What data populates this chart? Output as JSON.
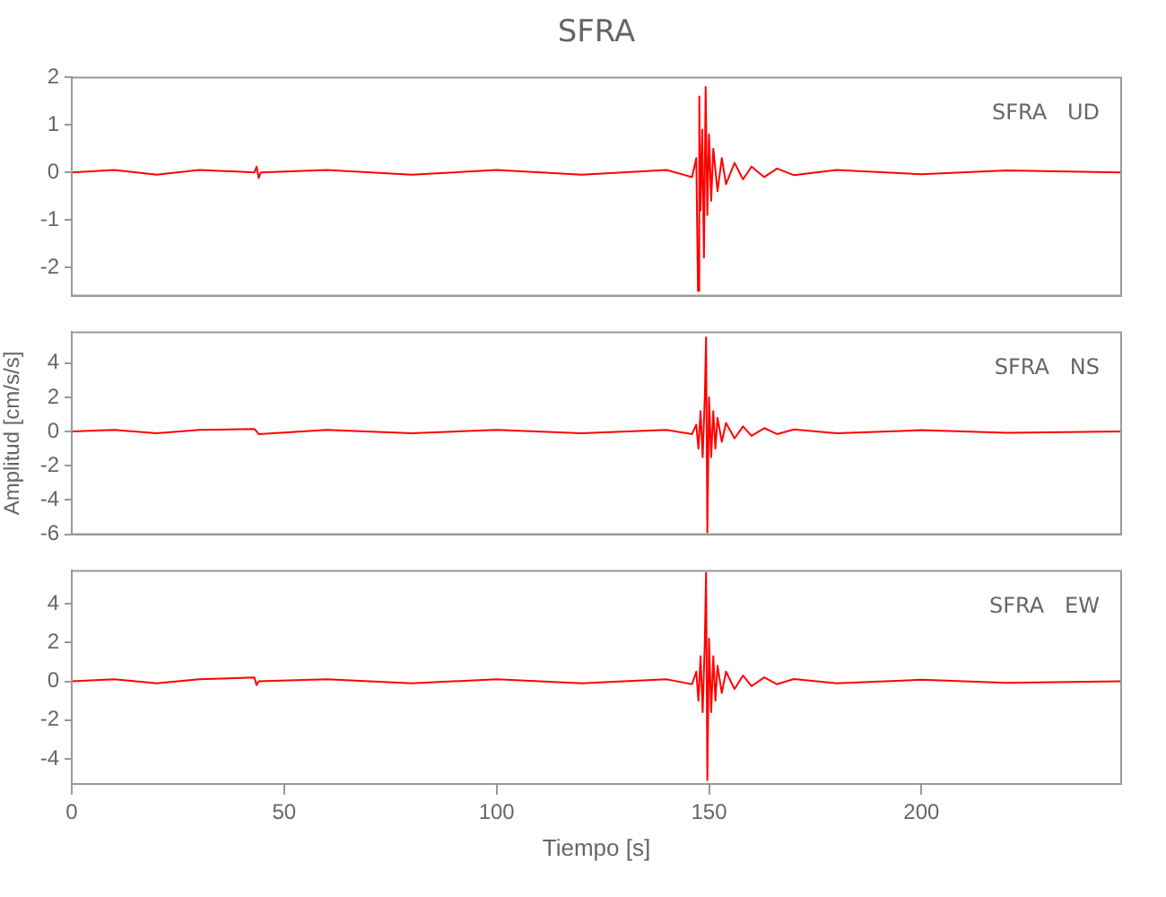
{
  "chart_data": [
    {
      "type": "line",
      "title": "SFRA",
      "annotations": [
        "SFRA   UD"
      ],
      "color": "#ff0000",
      "tick_labels": "y",
      "grid": false,
      "marker": "none",
      "line_style": "solid",
      "x": [
        0,
        10,
        20,
        30,
        43,
        43.5,
        44,
        44.5,
        60,
        80,
        100,
        120,
        140,
        146,
        147,
        147.4,
        147.7,
        148,
        148.4,
        148.8,
        149.2,
        149.6,
        150,
        150.5,
        151,
        152,
        153,
        154,
        156,
        158,
        160,
        163,
        166,
        170,
        180,
        200,
        220,
        247
      ],
      "values": [
        0,
        0.05,
        -0.05,
        0.05,
        0,
        0.12,
        -0.12,
        0,
        0.05,
        -0.05,
        0.05,
        -0.05,
        0.05,
        -0.1,
        0.3,
        -2.5,
        1.6,
        -0.8,
        0.9,
        -1.8,
        1.8,
        -0.9,
        0.8,
        -0.6,
        0.5,
        -0.4,
        0.3,
        -0.25,
        0.2,
        -0.15,
        0.12,
        -0.1,
        0.08,
        -0.06,
        0.05,
        -0.04,
        0.04,
        0
      ],
      "xlim": [
        0,
        247
      ],
      "xticks": [
        0,
        50,
        100,
        150,
        200
      ],
      "ylim": [
        -2.6,
        2
      ],
      "yticks": [
        -2,
        -1,
        0,
        1,
        2
      ]
    },
    {
      "type": "line",
      "annotations": [
        "SFRA   NS"
      ],
      "ylabel": "Amplitud [cm/s/s]",
      "color": "#ff0000",
      "tick_labels": "y",
      "grid": false,
      "marker": "none",
      "line_style": "solid",
      "x": [
        0,
        10,
        20,
        30,
        43,
        44,
        60,
        80,
        100,
        120,
        140,
        146,
        147,
        147.5,
        148,
        148.5,
        149,
        149.3,
        149.6,
        150,
        150.5,
        151,
        151.5,
        152,
        153,
        154,
        156,
        158,
        160,
        163,
        166,
        170,
        180,
        200,
        220,
        247
      ],
      "values": [
        0,
        0.1,
        -0.1,
        0.1,
        0.15,
        -0.15,
        0.1,
        -0.1,
        0.1,
        -0.1,
        0.1,
        -0.15,
        0.4,
        -1,
        1.2,
        -1.5,
        2,
        5.5,
        -5.9,
        2,
        -1.5,
        1.2,
        -1,
        0.8,
        -0.6,
        0.5,
        -0.4,
        0.3,
        -0.25,
        0.2,
        -0.15,
        0.12,
        -0.1,
        0.08,
        -0.08,
        0
      ],
      "xlim": [
        0,
        247
      ],
      "xticks": [
        0,
        50,
        100,
        150,
        200
      ],
      "ylim": [
        -6,
        5.8
      ],
      "yticks": [
        -6,
        -4,
        -2,
        0,
        2,
        4
      ]
    },
    {
      "type": "line",
      "annotations": [
        "SFRA   EW"
      ],
      "xlabel": "Tiempo [s]",
      "color": "#ff0000",
      "grid": false,
      "marker": "none",
      "line_style": "solid",
      "x": [
        0,
        10,
        20,
        30,
        43,
        43.5,
        44,
        60,
        80,
        100,
        120,
        140,
        146,
        147,
        147.5,
        148,
        148.5,
        149,
        149.3,
        149.6,
        150,
        150.5,
        151,
        151.5,
        152,
        153,
        154,
        156,
        158,
        160,
        163,
        166,
        170,
        180,
        200,
        220,
        247
      ],
      "values": [
        0,
        0.1,
        -0.1,
        0.1,
        0.2,
        -0.2,
        0,
        0.1,
        -0.1,
        0.1,
        -0.1,
        0.1,
        -0.15,
        0.5,
        -1,
        1.3,
        -1.6,
        2,
        5.6,
        -5.1,
        2.2,
        -1.6,
        1.3,
        -1,
        0.8,
        -0.6,
        0.5,
        -0.4,
        0.3,
        -0.25,
        0.2,
        -0.15,
        0.12,
        -0.1,
        0.08,
        -0.08,
        0
      ],
      "xlim": [
        0,
        247
      ],
      "xticks": [
        0,
        50,
        100,
        150,
        200
      ],
      "ylim": [
        -5.3,
        5.7
      ],
      "yticks": [
        -4,
        -2,
        0,
        2,
        4
      ]
    }
  ]
}
